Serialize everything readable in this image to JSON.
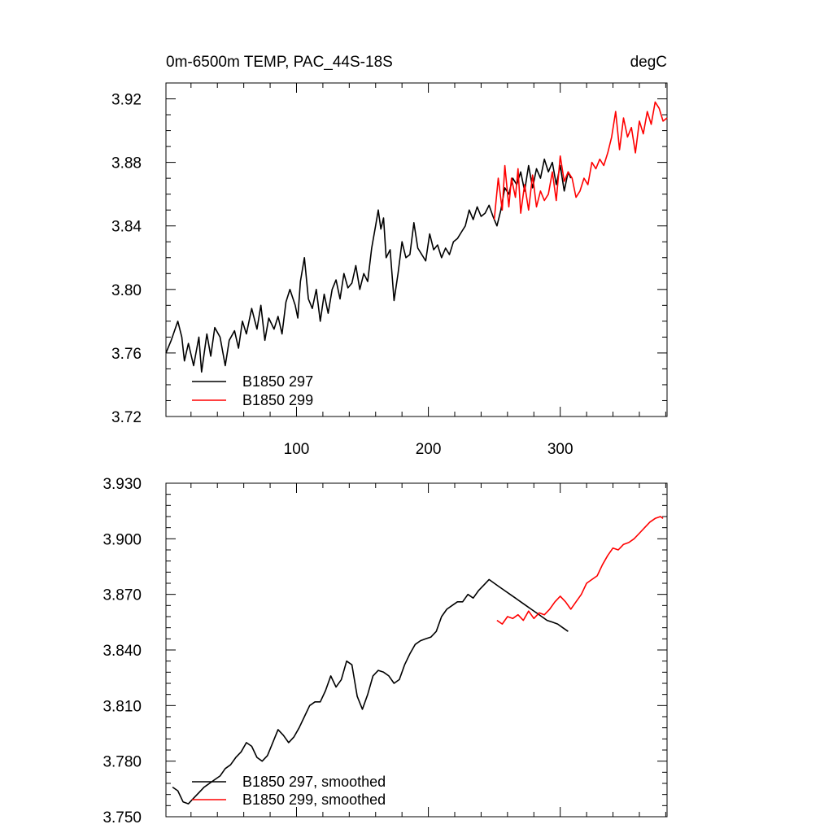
{
  "chart_data": [
    {
      "type": "line",
      "title": "0m-6500m TEMP, PAC_44S-18S",
      "units": "degC",
      "xlabel": "",
      "ylabel": "",
      "xlim": [
        1,
        381
      ],
      "ylim": [
        3.72,
        3.93
      ],
      "x_ticks": [
        100,
        200,
        300
      ],
      "x_tick_labels": [
        "100",
        "200",
        "300"
      ],
      "y_ticks": [
        3.72,
        3.76,
        3.8,
        3.84,
        3.88,
        3.92
      ],
      "y_tick_labels": [
        "3.72",
        "3.76",
        "3.80",
        "3.84",
        "3.88",
        "3.92"
      ],
      "legend_position": "bottom-left",
      "series": [
        {
          "name": "B1850 297",
          "color": "#000000",
          "x": [
            1,
            5,
            10,
            13,
            15,
            18,
            22,
            26,
            28,
            32,
            35,
            38,
            42,
            46,
            49,
            53,
            56,
            59,
            62,
            66,
            70,
            73,
            76,
            79,
            83,
            86,
            89,
            92,
            95,
            99,
            101,
            103,
            106,
            109,
            112,
            115,
            118,
            121,
            124,
            127,
            130,
            133,
            136,
            139,
            142,
            145,
            148,
            151,
            154,
            157,
            160,
            162,
            164,
            166,
            168,
            171,
            174,
            177,
            180,
            183,
            186,
            189,
            192,
            195,
            198,
            201,
            204,
            207,
            210,
            213,
            216,
            219,
            222,
            225,
            228,
            231,
            234,
            237,
            240,
            243,
            246,
            249,
            252,
            255,
            258,
            261,
            264,
            267,
            270,
            273,
            276,
            279,
            282,
            285,
            288,
            291,
            294,
            297,
            300,
            303,
            306,
            308
          ],
          "values": [
            3.76,
            3.768,
            3.78,
            3.77,
            3.755,
            3.766,
            3.752,
            3.77,
            3.748,
            3.772,
            3.758,
            3.776,
            3.77,
            3.752,
            3.768,
            3.774,
            3.763,
            3.78,
            3.772,
            3.788,
            3.775,
            3.79,
            3.768,
            3.782,
            3.775,
            3.783,
            3.772,
            3.792,
            3.8,
            3.79,
            3.782,
            3.805,
            3.82,
            3.794,
            3.788,
            3.8,
            3.78,
            3.797,
            3.785,
            3.8,
            3.806,
            3.794,
            3.81,
            3.801,
            3.804,
            3.815,
            3.8,
            3.81,
            3.805,
            3.826,
            3.84,
            3.85,
            3.838,
            3.845,
            3.82,
            3.825,
            3.793,
            3.81,
            3.83,
            3.82,
            3.822,
            3.842,
            3.826,
            3.822,
            3.818,
            3.835,
            3.825,
            3.828,
            3.82,
            3.826,
            3.822,
            3.83,
            3.832,
            3.836,
            3.84,
            3.85,
            3.844,
            3.852,
            3.846,
            3.848,
            3.853,
            3.846,
            3.84,
            3.85,
            3.864,
            3.86,
            3.87,
            3.866,
            3.874,
            3.862,
            3.878,
            3.864,
            3.876,
            3.87,
            3.882,
            3.874,
            3.88,
            3.866,
            3.878,
            3.862,
            3.874,
            3.87
          ]
        },
        {
          "name": "B1850 299",
          "color": "#ff0000",
          "x": [
            250,
            253,
            256,
            258,
            261,
            263,
            266,
            268,
            270,
            273,
            276,
            279,
            282,
            285,
            288,
            291,
            294,
            297,
            300,
            303,
            306,
            309,
            312,
            315,
            318,
            321,
            324,
            327,
            330,
            333,
            336,
            339,
            342,
            345,
            348,
            351,
            354,
            357,
            360,
            363,
            366,
            369,
            372,
            375,
            378,
            381
          ],
          "values": [
            3.844,
            3.87,
            3.85,
            3.878,
            3.852,
            3.87,
            3.858,
            3.876,
            3.848,
            3.866,
            3.85,
            3.872,
            3.852,
            3.862,
            3.856,
            3.86,
            3.874,
            3.856,
            3.884,
            3.868,
            3.874,
            3.87,
            3.858,
            3.862,
            3.87,
            3.866,
            3.88,
            3.876,
            3.882,
            3.878,
            3.886,
            3.896,
            3.912,
            3.888,
            3.908,
            3.896,
            3.902,
            3.886,
            3.906,
            3.898,
            3.912,
            3.904,
            3.918,
            3.914,
            3.906,
            3.908
          ]
        }
      ]
    },
    {
      "type": "line",
      "title": "",
      "xlabel": "",
      "ylabel": "",
      "xlim": [
        1,
        381
      ],
      "ylim": [
        3.75,
        3.93
      ],
      "x_ticks": [
        100,
        200,
        300
      ],
      "y_ticks": [
        3.75,
        3.78,
        3.81,
        3.84,
        3.87,
        3.9,
        3.93
      ],
      "y_tick_labels": [
        "3.750",
        "3.780",
        "3.810",
        "3.840",
        "3.870",
        "3.900",
        "3.930"
      ],
      "legend_position": "bottom-left",
      "series": [
        {
          "name": "B1850 297, smoothed",
          "color": "#000000",
          "x": [
            6,
            10,
            14,
            18,
            22,
            26,
            30,
            34,
            38,
            42,
            46,
            50,
            54,
            58,
            62,
            66,
            70,
            74,
            78,
            82,
            86,
            90,
            94,
            98,
            102,
            106,
            110,
            114,
            118,
            122,
            126,
            130,
            134,
            138,
            142,
            146,
            150,
            154,
            158,
            162,
            166,
            170,
            174,
            178,
            182,
            186,
            190,
            194,
            198,
            202,
            206,
            210,
            214,
            218,
            222,
            226,
            230,
            234,
            238,
            242,
            246,
            250,
            254,
            258,
            262,
            266,
            270,
            274,
            278,
            282,
            286,
            290,
            294,
            298,
            302,
            306
          ],
          "values": [
            3.766,
            3.764,
            3.758,
            3.757,
            3.76,
            3.763,
            3.766,
            3.768,
            3.77,
            3.772,
            3.776,
            3.778,
            3.782,
            3.785,
            3.79,
            3.788,
            3.782,
            3.78,
            3.783,
            3.79,
            3.797,
            3.794,
            3.79,
            3.793,
            3.798,
            3.804,
            3.81,
            3.812,
            3.812,
            3.818,
            3.826,
            3.82,
            3.824,
            3.834,
            3.832,
            3.815,
            3.808,
            3.816,
            3.826,
            3.829,
            3.828,
            3.826,
            3.822,
            3.824,
            3.832,
            3.838,
            3.843,
            3.845,
            3.846,
            3.847,
            3.85,
            3.858,
            3.862,
            3.864,
            3.866,
            3.866,
            3.87,
            3.868,
            3.872,
            3.875,
            3.878,
            3.876,
            3.874,
            3.872,
            3.87,
            3.868,
            3.866,
            3.864,
            3.862,
            3.86,
            3.858,
            3.856,
            3.855,
            3.854,
            3.852,
            3.85
          ]
        },
        {
          "name": "B1850 299, smoothed",
          "color": "#ff0000",
          "x": [
            252,
            256,
            260,
            264,
            268,
            272,
            276,
            280,
            284,
            288,
            292,
            296,
            300,
            304,
            308,
            312,
            316,
            320,
            324,
            328,
            332,
            336,
            340,
            344,
            348,
            352,
            356,
            360,
            364,
            368,
            372,
            376,
            378
          ],
          "values": [
            3.856,
            3.854,
            3.858,
            3.857,
            3.859,
            3.856,
            3.861,
            3.857,
            3.86,
            3.859,
            3.862,
            3.866,
            3.869,
            3.866,
            3.862,
            3.866,
            3.87,
            3.876,
            3.878,
            3.88,
            3.886,
            3.891,
            3.895,
            3.894,
            3.897,
            3.898,
            3.9,
            3.903,
            3.906,
            3.909,
            3.911,
            3.912,
            3.911
          ]
        }
      ]
    }
  ]
}
